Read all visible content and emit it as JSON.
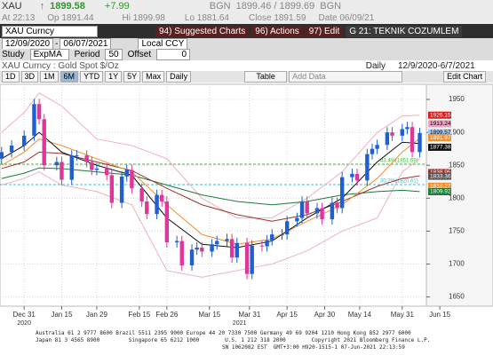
{
  "header": {
    "ticker": "XAU",
    "arrow": "↑",
    "last": "1899.58",
    "change": "+7.99",
    "bid_src": "BGN",
    "bid_ask": "1899.46 / 1899.69",
    "ask_src": "BGN",
    "at": "At 22:13",
    "open": "Op 1891.44",
    "high": "Hi 1899.98",
    "low": "Lo 1881.64",
    "close": "Close 1891.59",
    "date": "Date 06/09/21"
  },
  "menu": {
    "security": "XAU Curncy",
    "items": [
      "94) Suggested Charts",
      "96) Actions",
      "97) Edit",
      "G 21: TEKNIK COZUMLEM"
    ]
  },
  "range": {
    "start": "12/09/2020",
    "sep": "-",
    "end": "06/07/2021",
    "currency": "Local CCY"
  },
  "study": {
    "label": "Study",
    "name": "ExpMA",
    "period_label": "Period",
    "period": "50",
    "offset_label": "Offset",
    "offset": "0"
  },
  "toolbar": {
    "buttons": [
      "1D",
      "3D",
      "1M",
      "6M",
      "YTD",
      "1Y",
      "5Y",
      "Max"
    ],
    "frequency": "Daily",
    "table": "Table",
    "add_data": "Add Data",
    "edit_chart": "Edit Chart"
  },
  "chart_data": {
    "type": "candlestick",
    "title": "XAU Curncy : Gold Spot   $/Oz",
    "frequency_label": "Daily",
    "range_label": "12/9/2020-6/7/2021",
    "x": [
      -9,
      -5,
      0,
      4,
      6,
      8,
      13,
      15,
      19,
      21,
      25,
      27,
      29,
      33,
      35,
      39,
      41,
      43,
      47,
      49,
      53,
      55,
      57,
      61,
      63,
      67,
      69,
      71,
      75,
      77,
      81,
      83,
      85,
      89,
      91,
      95,
      97,
      99,
      103,
      105,
      109,
      111,
      113,
      117,
      119,
      123,
      125,
      127,
      131,
      133,
      137,
      139,
      141,
      145,
      147,
      151,
      153,
      155,
      158
    ],
    "open": [
      1860,
      1870,
      1880,
      1895,
      1943,
      1920,
      1850,
      1855,
      1828,
      1865,
      1865,
      1855,
      1843,
      1845,
      1835,
      1793,
      1833,
      1843,
      1815,
      1795,
      1776,
      1805,
      1795,
      1733,
      1735,
      1698,
      1722,
      1725,
      1719,
      1730,
      1735,
      1738,
      1710,
      1732,
      1685,
      1728,
      1727,
      1736,
      1745,
      1745,
      1765,
      1770,
      1795,
      1777,
      1785,
      1768,
      1793,
      1785,
      1832,
      1837,
      1827,
      1867,
      1875,
      1881,
      1900,
      1895,
      1905,
      1908,
      1870
    ],
    "high": [
      1878,
      1888,
      1903,
      1951,
      1951,
      1928,
      1863,
      1863,
      1873,
      1873,
      1873,
      1863,
      1853,
      1853,
      1843,
      1841,
      1851,
      1851,
      1823,
      1803,
      1813,
      1813,
      1803,
      1743,
      1743,
      1730,
      1733,
      1733,
      1738,
      1743,
      1746,
      1746,
      1740,
      1740,
      1736,
      1736,
      1744,
      1753,
      1753,
      1773,
      1778,
      1803,
      1803,
      1793,
      1793,
      1801,
      1801,
      1840,
      1845,
      1845,
      1875,
      1883,
      1889,
      1908,
      1908,
      1913,
      1916,
      1916,
      1907
    ],
    "low": [
      1852,
      1862,
      1872,
      1887,
      1912,
      1842,
      1842,
      1820,
      1820,
      1857,
      1847,
      1835,
      1835,
      1827,
      1785,
      1785,
      1825,
      1807,
      1787,
      1768,
      1768,
      1787,
      1725,
      1725,
      1690,
      1690,
      1714,
      1711,
      1711,
      1722,
      1727,
      1702,
      1702,
      1677,
      1677,
      1719,
      1719,
      1728,
      1737,
      1737,
      1757,
      1762,
      1769,
      1769,
      1760,
      1760,
      1777,
      1777,
      1824,
      1819,
      1819,
      1859,
      1867,
      1873,
      1887,
      1887,
      1897,
      1862,
      1862
    ],
    "close": [
      1870,
      1880,
      1895,
      1943,
      1920,
      1850,
      1855,
      1828,
      1865,
      1865,
      1855,
      1843,
      1845,
      1835,
      1793,
      1833,
      1843,
      1815,
      1795,
      1776,
      1805,
      1795,
      1733,
      1735,
      1698,
      1722,
      1725,
      1719,
      1730,
      1735,
      1738,
      1710,
      1732,
      1685,
      1728,
      1727,
      1736,
      1745,
      1745,
      1765,
      1770,
      1795,
      1777,
      1785,
      1768,
      1793,
      1785,
      1832,
      1837,
      1827,
      1867,
      1875,
      1881,
      1900,
      1895,
      1905,
      1908,
      1870,
      1899
    ],
    "up_color": "#1f5fd0",
    "down_color": "#e0359a",
    "overlays": [
      {
        "color": "#f0b0c0",
        "x": [
          -9,
          0,
          6,
          15,
          29,
          43,
          57,
          71,
          85,
          99,
          113,
          127,
          141,
          151,
          158
        ],
        "values": [
          1900,
          1930,
          1960,
          1940,
          1890,
          1880,
          1860,
          1800,
          1770,
          1770,
          1800,
          1840,
          1900,
          1925,
          1926
        ]
      },
      {
        "color": "#f0b0c0",
        "x": [
          -9,
          0,
          6,
          15,
          29,
          43,
          57,
          71,
          85,
          99,
          113,
          127,
          141,
          151,
          158
        ],
        "values": [
          1820,
          1830,
          1840,
          1820,
          1810,
          1790,
          1690,
          1680,
          1690,
          1700,
          1720,
          1750,
          1770,
          1840,
          1860
        ]
      },
      {
        "color": "#1a7a3a",
        "x": [
          -9,
          0,
          6,
          15,
          29,
          43,
          57,
          71,
          85,
          99,
          113,
          127,
          141,
          151,
          158
        ],
        "values": [
          1830,
          1838,
          1846,
          1845,
          1840,
          1835,
          1820,
          1805,
          1795,
          1790,
          1795,
          1805,
          1810,
          1812,
          1810
        ]
      },
      {
        "color": "#a0302a",
        "x": [
          -9,
          0,
          6,
          15,
          29,
          43,
          57,
          71,
          85,
          99,
          113,
          127,
          141,
          151,
          158
        ],
        "values": [
          1845,
          1855,
          1870,
          1868,
          1855,
          1842,
          1815,
          1790,
          1775,
          1765,
          1775,
          1795,
          1818,
          1830,
          1834
        ]
      },
      {
        "color": "#f09030",
        "x": [
          -9,
          0,
          6,
          15,
          29,
          43,
          57,
          71,
          85,
          99,
          113,
          127,
          141,
          151,
          158
        ],
        "values": [
          1850,
          1870,
          1890,
          1880,
          1860,
          1840,
          1790,
          1745,
          1730,
          1738,
          1765,
          1790,
          1830,
          1870,
          1891
        ]
      },
      {
        "color": "#111111",
        "x": [
          -9,
          0,
          6,
          15,
          29,
          43,
          57,
          71,
          85,
          99,
          113,
          127,
          141,
          151,
          158
        ],
        "values": [
          1860,
          1880,
          1900,
          1870,
          1850,
          1835,
          1770,
          1730,
          1725,
          1735,
          1770,
          1800,
          1855,
          1885,
          1883
        ]
      }
    ],
    "levels": [
      {
        "label": "43.4%(1851.69)",
        "value": 1851.69,
        "color": "#3cb83c"
      },
      {
        "label": "30.2%(1820.61)",
        "value": 1820.61,
        "color": "#30c0d8"
      }
    ],
    "price_labels": [
      {
        "value": 1926.15,
        "color": "#d42020"
      },
      {
        "value": 1913.24,
        "color": "#f0a0c0"
      },
      {
        "value": 1899.57,
        "color": "#a8c8f0"
      },
      {
        "value": 1891.97,
        "color": "#f09030"
      },
      {
        "value": 1877.38,
        "color": "#111111"
      },
      {
        "value": 1838.95,
        "color": "#a0302a"
      },
      {
        "value": 1833.36,
        "color": "#555555"
      },
      {
        "value": 1818.27,
        "color": "#f09030"
      },
      {
        "value": 1809.92,
        "color": "#1a7a3a"
      }
    ],
    "ylim": [
      1636,
      1973
    ],
    "yticks": [
      1650,
      1700,
      1750,
      1800,
      1850,
      1900,
      1950
    ],
    "xlim": [
      -10,
      172
    ],
    "xticks": [
      {
        "value": 0,
        "label": "Dec 31"
      },
      {
        "value": 15,
        "label": "Jan 15"
      },
      {
        "value": 29,
        "label": "Jan 29"
      },
      {
        "value": 46,
        "label": "Feb 15"
      },
      {
        "value": 57,
        "label": "Feb 26"
      },
      {
        "value": 74,
        "label": "Mar 15"
      },
      {
        "value": 90,
        "label": "Mar 31"
      },
      {
        "value": 105,
        "label": "Apr 15"
      },
      {
        "value": 120,
        "label": "Apr 30"
      },
      {
        "value": 134,
        "label": "May 14"
      },
      {
        "value": 151,
        "label": "May 31"
      },
      {
        "value": 166,
        "label": "Jun 15"
      }
    ],
    "year_labels": [
      {
        "value": 0,
        "label": "2020"
      },
      {
        "value": 86,
        "label": "2021"
      }
    ],
    "grid": true
  },
  "footer": {
    "lines": [
      "Australia 61 2 9777 8600 Brazil 5511 2395 9000 Europe 44 20 7330 7500 Germany 49 69 9204 1210 Hong Kong 852 2977 6000",
      "Japan 81 3 4565 8900         Singapore 65 6212 1000        U.S. 1 212 318 2000        Copyright 2021 Bloomberg Finance L.P.",
      "SN 1062082 EST  GMT+3:00 H920-1515-1 07-Jun-2021 22:13:59"
    ]
  }
}
